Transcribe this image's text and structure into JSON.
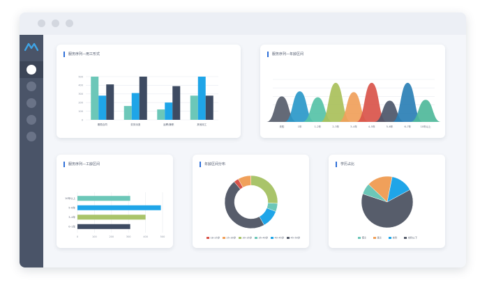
{
  "window": {
    "controls": [
      "close",
      "minimize",
      "maximize"
    ]
  },
  "sidebar": {
    "logo_icon": "brand-logo-icon",
    "items": [
      {
        "name": "nav-item-1",
        "active": true
      },
      {
        "name": "nav-item-2",
        "active": false
      },
      {
        "name": "nav-item-3",
        "active": false
      },
      {
        "name": "nav-item-4",
        "active": false
      },
      {
        "name": "nav-item-5",
        "active": false
      }
    ]
  },
  "colors": {
    "accent": "#2e6fd8",
    "teal": "#6cc7b8",
    "blue": "#1fa5e8",
    "navy": "#3e4b62",
    "olive": "#a9c46a",
    "orange": "#f0a05a",
    "red": "#d9544a",
    "dark": "#575d6b",
    "cyan": "#25b0e8"
  },
  "cards": {
    "employment": {
      "title": "服务序列—用工形式"
    },
    "age": {
      "title": "服务序列—年龄区间"
    },
    "tenure": {
      "title": "服务序列—工龄区间"
    },
    "age_dist": {
      "title": "年龄区间分布"
    },
    "edu": {
      "title": "学历占比"
    }
  },
  "chart_data": [
    {
      "type": "bar",
      "title": "服务序列—用工形式",
      "categories": [
        "期限合同",
        "劳务派遣",
        "返聘/兼职",
        "其他用工"
      ],
      "series": [
        {
          "values": [
            500,
            160,
            120,
            280
          ]
        },
        {
          "values": [
            280,
            310,
            200,
            500
          ]
        },
        {
          "values": [
            410,
            500,
            390,
            280
          ]
        }
      ],
      "y_ticks": [
        "0",
        "100",
        "200",
        "300",
        "400",
        "500"
      ],
      "ylim": [
        0,
        500
      ],
      "grid": true
    },
    {
      "type": "area",
      "title": "服务序列—年龄区间",
      "categories": [
        "未知",
        "1年",
        "1–2年",
        "2–3年",
        "3–4年",
        "4–5年",
        "5–6年",
        "6–7年",
        "10年以上"
      ],
      "values": [
        30,
        36,
        29,
        46,
        35,
        46,
        25,
        46,
        26
      ],
      "colors": [
        "#575d6b",
        "#2a98c9",
        "#56c2a7",
        "#a9c05a",
        "#f0a05a",
        "#d9544a",
        "#4c5669",
        "#2a7fb5",
        "#4fb89a"
      ],
      "ylim": [
        0,
        50
      ],
      "grid": true
    },
    {
      "type": "bar",
      "orientation": "horizontal",
      "title": "服务序列—工龄区间",
      "categories": [
        "10年以上",
        "5–6年",
        "3–4年",
        "0–1年"
      ],
      "values": [
        310,
        490,
        400,
        310
      ],
      "colors": [
        "#6cc7b8",
        "#1fa5e8",
        "#a9c46a",
        "#3e4b62"
      ],
      "x_ticks": [
        "0",
        "100",
        "200",
        "300",
        "400",
        "500"
      ],
      "xlim": [
        0,
        500
      ],
      "grid": true
    },
    {
      "type": "pie",
      "variant": "donut",
      "title": "年龄区间分布",
      "labels": [
        "18–25岁",
        "25–30岁",
        "30–35岁",
        "35–40岁",
        "40–45岁",
        "45–50岁"
      ],
      "values": [
        3,
        8,
        26,
        5,
        11,
        47
      ],
      "colors": [
        "#d9544a",
        "#f0a05a",
        "#a9c46a",
        "#6cc7b8",
        "#1fa5e8",
        "#575d6b"
      ],
      "legend": "bottom"
    },
    {
      "type": "pie",
      "title": "学历占比",
      "labels": [
        "博士",
        "硕士",
        "本科",
        "本科以下"
      ],
      "values": [
        7,
        16,
        14,
        63
      ],
      "colors": [
        "#6cc7b8",
        "#f0a05a",
        "#1fa5e8",
        "#575d6b"
      ],
      "legend": "bottom"
    }
  ]
}
